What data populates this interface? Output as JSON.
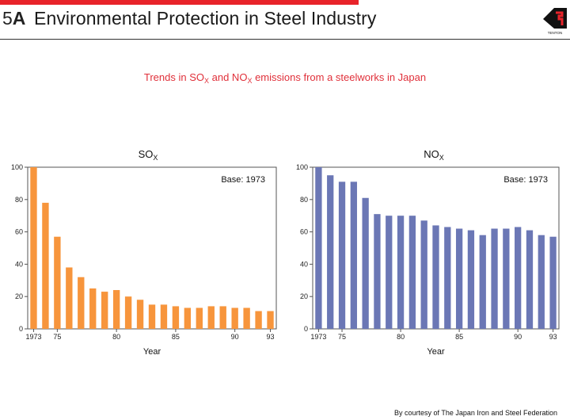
{
  "header": {
    "section_number": "5",
    "section_letter": "A",
    "title": "Environmental Protection in Steel Industry",
    "logo_text": "TENTON"
  },
  "subtitle": {
    "prefix": "Trends in SO",
    "sub1": "X",
    "mid": " and NO",
    "sub2": "X",
    "suffix": " emissions from a steelworks in Japan"
  },
  "footer": "By courtesy of The Japan Iron and Steel Federation",
  "colors": {
    "accent": "#e8232a",
    "so_bar": "#f7953c",
    "no_bar": "#6b77b5",
    "subtitle": "#e0303a"
  },
  "chart_data": [
    {
      "type": "bar",
      "title_main": "SO",
      "title_sub": "X",
      "annotation": "Base: 1973",
      "xlabel": "Year",
      "ylim": [
        0,
        100
      ],
      "yticks": [
        0,
        20,
        40,
        60,
        80,
        100
      ],
      "x": [
        1973,
        1974,
        1975,
        1976,
        1977,
        1978,
        1979,
        1980,
        1981,
        1982,
        1983,
        1984,
        1985,
        1986,
        1987,
        1988,
        1989,
        1990,
        1991,
        1992,
        1993
      ],
      "xtick_labels": [
        {
          "x": 1973,
          "label": "1973"
        },
        {
          "x": 1975,
          "label": "75"
        },
        {
          "x": 1980,
          "label": "80"
        },
        {
          "x": 1985,
          "label": "85"
        },
        {
          "x": 1990,
          "label": "90"
        },
        {
          "x": 1993,
          "label": "93"
        }
      ],
      "values": [
        100,
        78,
        57,
        38,
        32,
        25,
        23,
        24,
        20,
        18,
        15,
        15,
        14,
        13,
        13,
        14,
        14,
        13,
        13,
        11,
        11
      ]
    },
    {
      "type": "bar",
      "title_main": "NO",
      "title_sub": "X",
      "annotation": "Base: 1973",
      "xlabel": "Year",
      "ylim": [
        0,
        100
      ],
      "yticks": [
        0,
        20,
        40,
        60,
        80,
        100
      ],
      "x": [
        1973,
        1974,
        1975,
        1976,
        1977,
        1978,
        1979,
        1980,
        1981,
        1982,
        1983,
        1984,
        1985,
        1986,
        1987,
        1988,
        1989,
        1990,
        1991,
        1992,
        1993
      ],
      "xtick_labels": [
        {
          "x": 1973,
          "label": "1973"
        },
        {
          "x": 1975,
          "label": "75"
        },
        {
          "x": 1980,
          "label": "80"
        },
        {
          "x": 1985,
          "label": "85"
        },
        {
          "x": 1990,
          "label": "90"
        },
        {
          "x": 1993,
          "label": "93"
        }
      ],
      "values": [
        100,
        95,
        91,
        91,
        81,
        71,
        70,
        70,
        70,
        67,
        64,
        63,
        62,
        61,
        58,
        62,
        62,
        63,
        61,
        58,
        57
      ]
    }
  ]
}
